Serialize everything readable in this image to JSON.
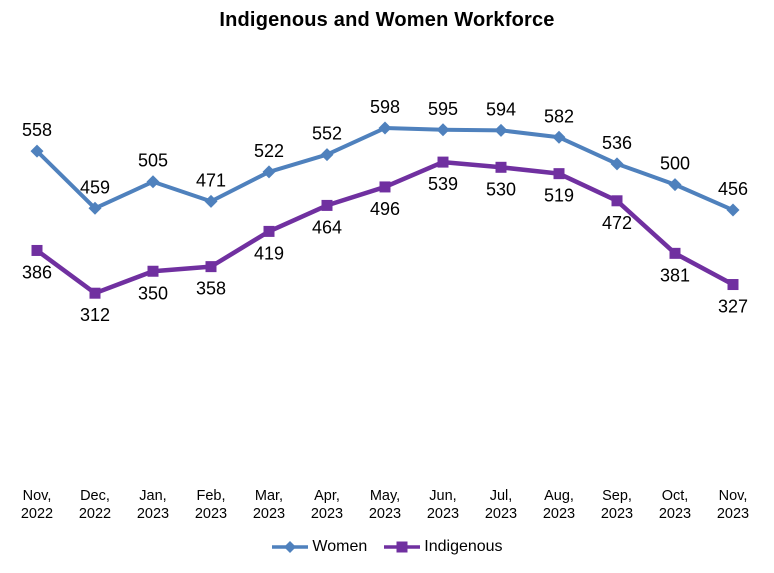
{
  "title": "Indigenous and Women Workforce",
  "colors": {
    "women_series": "#4F81BD",
    "indigenous_series": "#7030A0",
    "text": "#000000",
    "background": "#FFFFFF"
  },
  "chart_data": {
    "type": "line",
    "title": "Indigenous and Women Workforce",
    "categories": [
      {
        "month": "Nov,",
        "year": "2022"
      },
      {
        "month": "Dec,",
        "year": "2022"
      },
      {
        "month": "Jan,",
        "year": "2023"
      },
      {
        "month": "Feb,",
        "year": "2023"
      },
      {
        "month": "Mar,",
        "year": "2023"
      },
      {
        "month": "Apr,",
        "year": "2023"
      },
      {
        "month": "May,",
        "year": "2023"
      },
      {
        "month": "Jun,",
        "year": "2023"
      },
      {
        "month": "Jul,",
        "year": "2023"
      },
      {
        "month": "Aug,",
        "year": "2023"
      },
      {
        "month": "Sep,",
        "year": "2023"
      },
      {
        "month": "Oct,",
        "year": "2023"
      },
      {
        "month": "Nov,",
        "year": "2023"
      }
    ],
    "series": [
      {
        "name": "Women",
        "color": "#4F81BD",
        "marker": "diamond",
        "label_position": "above",
        "values": [
          558,
          459,
          505,
          471,
          522,
          552,
          598,
          595,
          594,
          582,
          536,
          500,
          456
        ]
      },
      {
        "name": "Indigenous",
        "color": "#7030A0",
        "marker": "square",
        "label_position": "below",
        "values": [
          386,
          312,
          350,
          358,
          419,
          464,
          496,
          539,
          530,
          519,
          472,
          381,
          327
        ]
      }
    ],
    "xlabel": "",
    "ylabel": "",
    "ylim": [
      250,
      650
    ],
    "grid": false,
    "axes_visible": false,
    "data_labels": true,
    "legend_position": "bottom"
  }
}
